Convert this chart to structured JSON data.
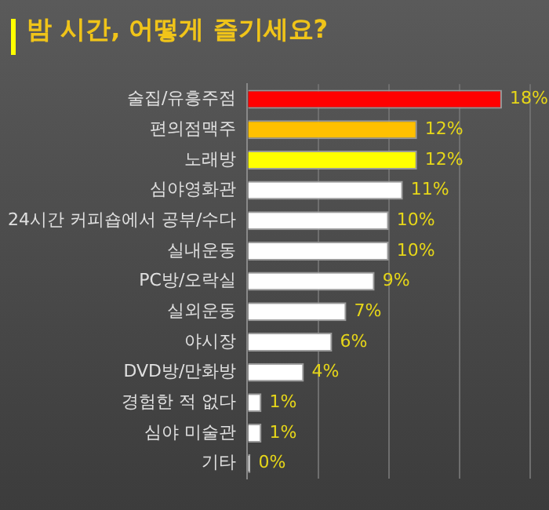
{
  "chart_data": {
    "type": "bar",
    "orientation": "horizontal",
    "title": "밤 시간, 어떻게 즐기세요?",
    "categories": [
      "술집/유흥주점",
      "편의점맥주",
      "노래방",
      "심야영화관",
      "24시간 커피숍에서 공부/수다",
      "실내운동",
      "PC방/오락실",
      "실외운동",
      "야시장",
      "DVD방/만화방",
      "경험한 적 없다",
      "심야 미술관",
      "기타"
    ],
    "values": [
      18,
      12,
      12,
      11,
      10,
      10,
      9,
      7,
      6,
      4,
      1,
      1,
      0
    ],
    "colors": [
      "#ff0000",
      "#ffc000",
      "#ffff00",
      "#ffffff",
      "#ffffff",
      "#ffffff",
      "#ffffff",
      "#ffffff",
      "#ffffff",
      "#ffffff",
      "#ffffff",
      "#ffffff",
      "#ffffff"
    ],
    "value_labels": [
      "18%",
      "12%",
      "12%",
      "11%",
      "10%",
      "10%",
      "9%",
      "7%",
      "6%",
      "4%",
      "1%",
      "1%",
      "0%"
    ],
    "xlim": [
      0,
      20
    ],
    "xticks": [
      {
        "value": 0,
        "label": null
      },
      {
        "value": 5,
        "label": null
      },
      {
        "value": 10,
        "label": null
      },
      {
        "value": 15,
        "label": null
      },
      {
        "value": 20,
        "label": null
      }
    ],
    "grid": "x",
    "tick_labels": "y",
    "legend": false
  }
}
